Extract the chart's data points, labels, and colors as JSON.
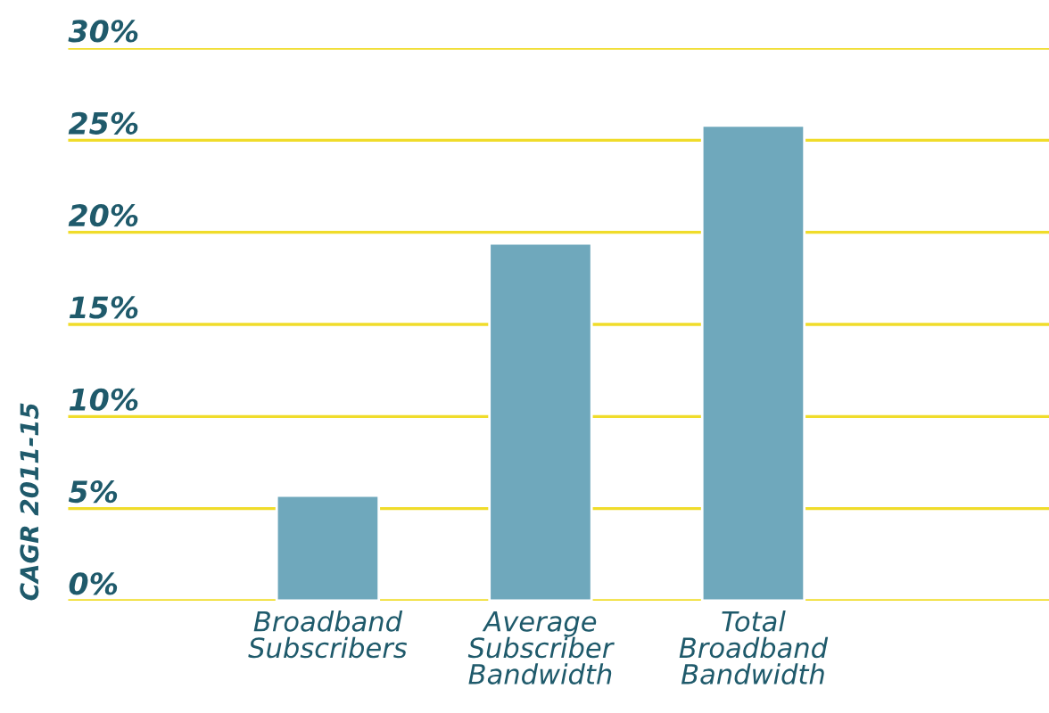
{
  "chart_data": {
    "type": "bar",
    "ylabel": "CAGR 2011-15",
    "categories": [
      "Broadband\nSubscribers",
      "Average\nSubscriber\nBandwidth",
      "Total\nBroadband\nBandwidth"
    ],
    "values": [
      5.7,
      19.4,
      25.8
    ],
    "color": "#6fa8bc",
    "ylim": [
      0,
      30
    ],
    "yticks": [
      {
        "value": 0,
        "label": "0%"
      },
      {
        "value": 5,
        "label": "5%"
      },
      {
        "value": 10,
        "label": "10%"
      },
      {
        "value": 15,
        "label": "15%"
      },
      {
        "value": 20,
        "label": "20%"
      },
      {
        "value": 25,
        "label": "25%"
      },
      {
        "value": 30,
        "label": "30%"
      }
    ],
    "grid": "y",
    "legend": false
  }
}
